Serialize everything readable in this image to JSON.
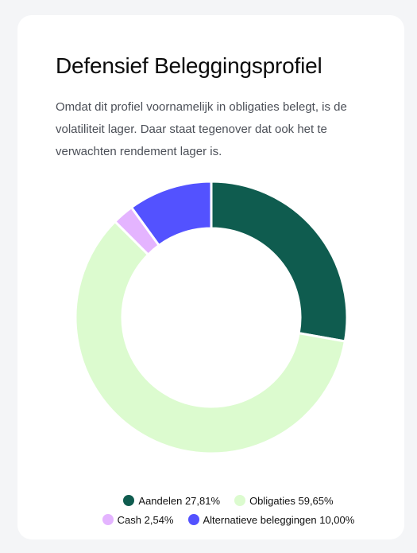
{
  "card": {
    "title": "Defensief Beleggingsprofiel",
    "description": "Omdat dit profiel voornamelijk in obligaties belegt, is de volatiliteit lager. Daar staat tegenover dat ook het te verwachten rendement lager is."
  },
  "chart_data": {
    "type": "pie",
    "categories": [
      "Aandelen",
      "Obligaties",
      "Cash",
      "Alternatieve beleggingen"
    ],
    "values": [
      27.81,
      59.65,
      2.54,
      10.0
    ],
    "colors": [
      "#0f5c4f",
      "#dcfbcf",
      "#e4b4ff",
      "#5352ff"
    ],
    "legend_labels": [
      "Aandelen 27,81%",
      "Obligaties 59,65%",
      "Cash 2,54%",
      "Alternatieve beleggingen 10,00%"
    ],
    "legend_position": "bottom",
    "style": "donut",
    "start": "top",
    "direction": "clockwise"
  }
}
